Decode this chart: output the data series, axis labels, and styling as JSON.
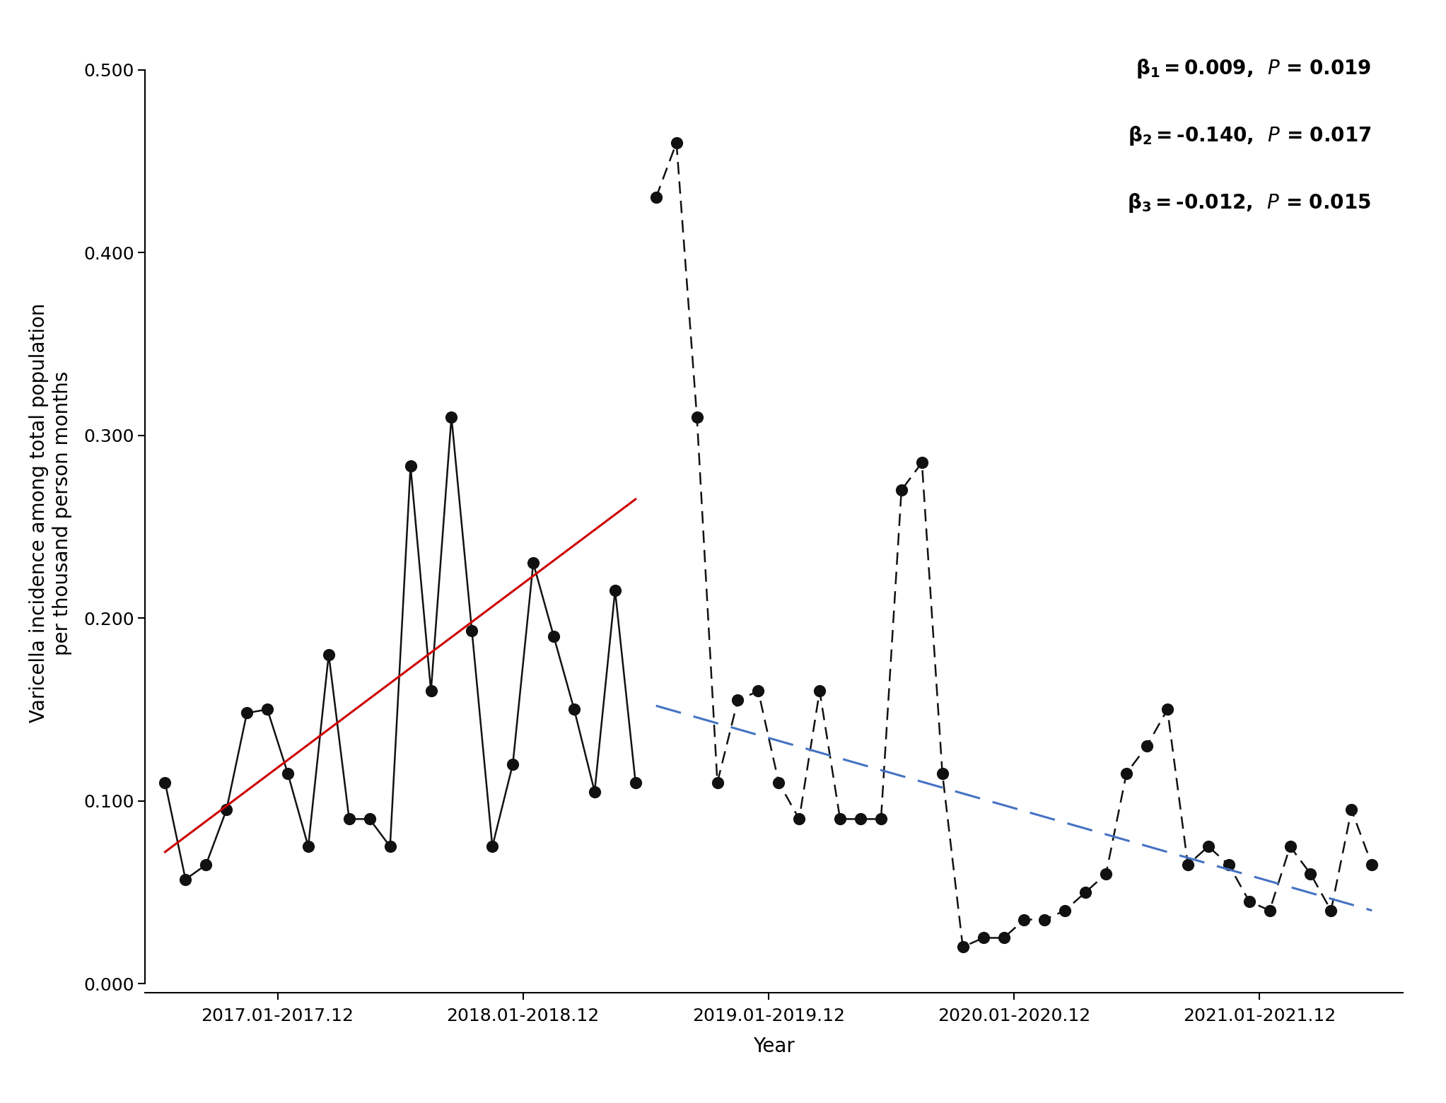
{
  "xlabel": "Year",
  "ylabel": "Varicella incidence among total population\nper thousand person months",
  "ylim": [
    -0.005,
    0.52
  ],
  "yticks": [
    0.0,
    0.1,
    0.2,
    0.3,
    0.4,
    0.5
  ],
  "ytick_labels": [
    "0.000",
    "0.100",
    "0.200",
    "0.300",
    "0.400",
    "0.500"
  ],
  "xtick_labels": [
    "2017.01-2017.12",
    "2018.01-2018.12",
    "2019.01-2019.12",
    "2020.01-2020.12",
    "2021.01-2021.12"
  ],
  "pre_x": [
    1,
    2,
    3,
    4,
    5,
    6,
    7,
    8,
    9,
    10,
    11,
    12,
    13,
    14,
    15,
    16,
    17,
    18,
    19,
    20,
    21,
    22,
    23,
    24
  ],
  "pre_y": [
    0.11,
    0.057,
    0.065,
    0.095,
    0.148,
    0.15,
    0.115,
    0.075,
    0.18,
    0.09,
    0.09,
    0.075,
    0.283,
    0.16,
    0.31,
    0.193,
    0.075,
    0.12,
    0.23,
    0.19,
    0.15,
    0.105,
    0.215,
    0.11
  ],
  "post_x": [
    25,
    26,
    27,
    28,
    29,
    30,
    31,
    32,
    33,
    34,
    35,
    36,
    37,
    38,
    39,
    40,
    41,
    42,
    43,
    44,
    45,
    46,
    47,
    48,
    49,
    50,
    51,
    52,
    53,
    54,
    55,
    56,
    57,
    58,
    59,
    60
  ],
  "post_y": [
    0.43,
    0.46,
    0.31,
    0.11,
    0.155,
    0.16,
    0.11,
    0.09,
    0.16,
    0.09,
    0.09,
    0.09,
    0.27,
    0.285,
    0.115,
    0.02,
    0.025,
    0.025,
    0.035,
    0.035,
    0.04,
    0.05,
    0.06,
    0.115,
    0.13,
    0.15,
    0.065,
    0.075,
    0.065,
    0.045,
    0.04,
    0.075,
    0.06,
    0.04,
    0.095,
    0.065
  ],
  "red_line_x": [
    1,
    24
  ],
  "red_line_y": [
    0.072,
    0.265
  ],
  "blue_line_x": [
    25,
    60
  ],
  "blue_line_y": [
    0.152,
    0.04
  ],
  "dot_color": "#111111",
  "dot_size": 130,
  "pre_line_color": "#111111",
  "post_line_color": "#111111",
  "red_line_color": "#cc0000",
  "blue_line_color": "#4472c4",
  "background_color": "#ffffff",
  "font_size_labels": 20,
  "font_size_ticks": 18,
  "font_size_annot": 20
}
